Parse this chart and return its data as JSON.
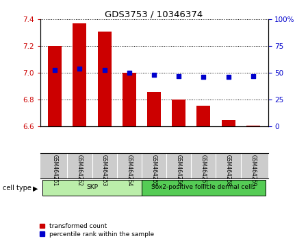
{
  "title": "GDS3753 / 10346374",
  "samples": [
    "GSM464261",
    "GSM464262",
    "GSM464263",
    "GSM464264",
    "GSM464265",
    "GSM464266",
    "GSM464267",
    "GSM464268",
    "GSM464269"
  ],
  "transformed_count": [
    7.2,
    7.37,
    7.31,
    7.0,
    6.855,
    6.8,
    6.755,
    6.645,
    6.605
  ],
  "percentile_rank": [
    53,
    54,
    53,
    50,
    48,
    47,
    46,
    46,
    47
  ],
  "ylim_left": [
    6.6,
    7.4
  ],
  "ylim_right": [
    0,
    100
  ],
  "yticks_left": [
    6.6,
    6.8,
    7.0,
    7.2,
    7.4
  ],
  "yticks_right": [
    0,
    25,
    50,
    75,
    100
  ],
  "ytick_right_labels": [
    "0",
    "25",
    "50",
    "75",
    "100%"
  ],
  "bar_color": "#cc0000",
  "dot_color": "#0000cc",
  "bar_bottom": 6.6,
  "cell_type_groups": [
    {
      "label": "SKP",
      "start": 0,
      "end": 3,
      "color": "#bbeeaa"
    },
    {
      "label": "Sox2-positive follicle dermal cells",
      "start": 4,
      "end": 8,
      "color": "#55cc55"
    }
  ],
  "cell_type_label": "cell type",
  "legend_items": [
    {
      "label": "transformed count",
      "color": "#cc0000"
    },
    {
      "label": "percentile rank within the sample",
      "color": "#0000cc"
    }
  ],
  "plot_bg_color": "#ffffff",
  "tick_color_left": "#cc0000",
  "tick_color_right": "#0000cc",
  "sample_label_bg": "#cccccc",
  "sample_label_border": "#999999"
}
